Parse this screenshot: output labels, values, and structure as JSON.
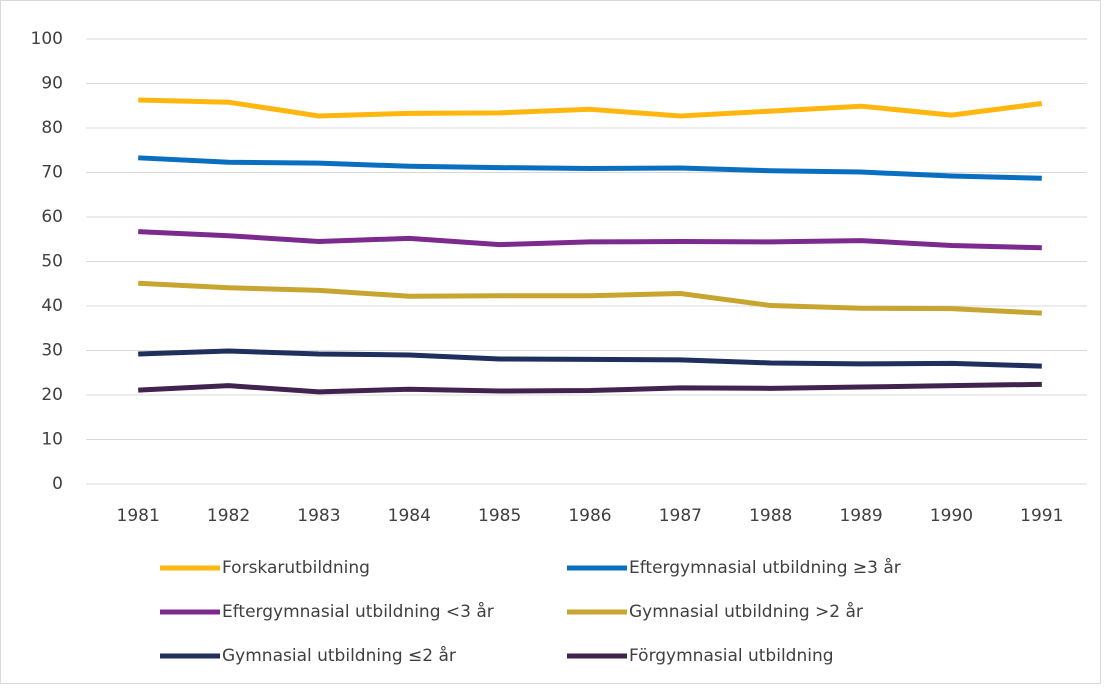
{
  "chart_data": {
    "type": "line",
    "categories": [
      "1981",
      "1982",
      "1983",
      "1984",
      "1985",
      "1986",
      "1987",
      "1988",
      "1989",
      "1990",
      "1991"
    ],
    "series": [
      {
        "name": "Forskarutbildning",
        "color": "#FFB70F",
        "values": [
          86.3,
          85.8,
          82.7,
          83.3,
          83.4,
          84.2,
          82.7,
          83.8,
          84.9,
          82.9,
          85.5
        ]
      },
      {
        "name": "Eftergymnasial utbildning   ≥3 år",
        "color": "#0A6FBF",
        "values": [
          73.3,
          72.3,
          72.1,
          71.4,
          71.1,
          70.9,
          71.0,
          70.4,
          70.1,
          69.2,
          68.7
        ]
      },
      {
        "name": "Eftergymnasial utbildning  <3 år",
        "color": "#7D2A8E",
        "values": [
          56.7,
          55.8,
          54.5,
          55.2,
          53.8,
          54.4,
          54.5,
          54.4,
          54.7,
          53.6,
          53.1
        ]
      },
      {
        "name": "Gymnasial utbildning >2 år",
        "color": "#C7A530",
        "values": [
          45.1,
          44.1,
          43.5,
          42.2,
          42.3,
          42.3,
          42.8,
          40.1,
          39.5,
          39.4,
          38.4
        ]
      },
      {
        "name": "Gymnasial utbildning ≤2 år",
        "color": "#1F2F5E",
        "values": [
          29.2,
          29.9,
          29.2,
          29.0,
          28.1,
          28.0,
          27.9,
          27.2,
          27.0,
          27.1,
          26.5
        ]
      },
      {
        "name": "Förgymnasial utbildning",
        "color": "#42224E",
        "values": [
          21.1,
          22.1,
          20.7,
          21.3,
          20.9,
          21.0,
          21.6,
          21.5,
          21.8,
          22.1,
          22.4
        ]
      }
    ],
    "ylim": [
      0,
      100
    ],
    "yticks": [
      0,
      10,
      20,
      30,
      40,
      50,
      60,
      70,
      80,
      90,
      100
    ],
    "grid": true
  }
}
